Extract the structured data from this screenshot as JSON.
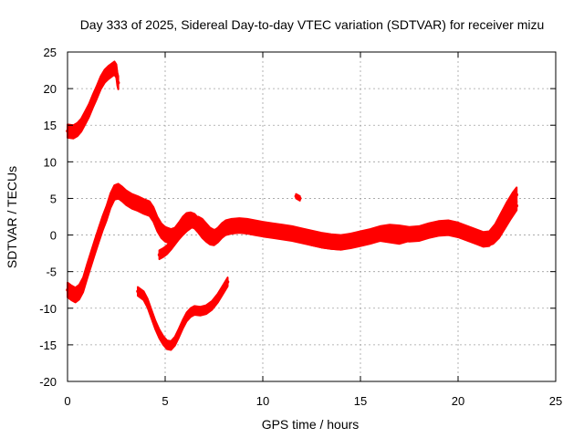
{
  "chart_data": {
    "type": "scatter",
    "title": "Day 333 of 2025, Sidereal Day-to-day VTEC variation (SDTVAR) for receiver mizu",
    "xlabel": "GPS time / hours",
    "ylabel": "SDTVAR / TECUs",
    "xlim": [
      0,
      25
    ],
    "ylim": [
      -20,
      25
    ],
    "xticks": [
      0,
      5,
      10,
      15,
      20,
      25
    ],
    "yticks": [
      -20,
      -15,
      -10,
      -5,
      0,
      5,
      10,
      15,
      20,
      25
    ],
    "xtick_labels": [
      "0",
      "5",
      "10",
      "15",
      "20",
      "25"
    ],
    "ytick_labels": [
      "-20",
      "-15",
      "-10",
      "-5",
      "0",
      "5",
      "10",
      "15",
      "20",
      "25"
    ],
    "grid": true,
    "legend": "none",
    "series_color": "#ff0000",
    "series": [
      {
        "name": "arc-1",
        "thickness": 0.9,
        "points": [
          [
            0.0,
            14.2
          ],
          [
            0.3,
            14.1
          ],
          [
            0.5,
            14.4
          ],
          [
            0.7,
            15.0
          ],
          [
            0.9,
            16.0
          ],
          [
            1.1,
            17.0
          ],
          [
            1.3,
            18.3
          ],
          [
            1.5,
            19.5
          ],
          [
            1.7,
            20.8
          ],
          [
            1.9,
            21.7
          ],
          [
            2.1,
            22.2
          ],
          [
            2.3,
            22.6
          ],
          [
            2.4,
            22.8
          ],
          [
            2.5,
            22.4
          ],
          [
            2.55,
            21.3
          ],
          [
            2.6,
            20.8
          ]
        ]
      },
      {
        "name": "arc-2",
        "thickness": 1.0,
        "points": [
          [
            0.0,
            -7.5
          ],
          [
            0.2,
            -7.9
          ],
          [
            0.4,
            -8.2
          ],
          [
            0.6,
            -7.8
          ],
          [
            0.8,
            -6.8
          ],
          [
            1.0,
            -5.0
          ],
          [
            1.2,
            -3.3
          ],
          [
            1.4,
            -1.6
          ],
          [
            1.6,
            0.0
          ],
          [
            1.8,
            1.6
          ],
          [
            2.0,
            3.0
          ],
          [
            2.2,
            4.7
          ],
          [
            2.4,
            5.8
          ],
          [
            2.6,
            6.0
          ],
          [
            2.8,
            5.6
          ],
          [
            3.0,
            5.1
          ],
          [
            3.3,
            4.6
          ],
          [
            3.6,
            4.3
          ],
          [
            3.9,
            3.9
          ],
          [
            4.2,
            3.6
          ],
          [
            4.4,
            2.8
          ],
          [
            4.6,
            1.5
          ],
          [
            4.8,
            0.6
          ],
          [
            5.0,
            0.1
          ],
          [
            5.3,
            -0.2
          ],
          [
            5.5,
            0.0
          ],
          [
            5.7,
            0.7
          ],
          [
            5.9,
            1.5
          ],
          [
            6.1,
            2.0
          ],
          [
            6.3,
            2.1
          ],
          [
            6.5,
            1.9
          ],
          [
            6.7,
            1.3
          ],
          [
            6.9,
            0.6
          ],
          [
            7.1,
            0.1
          ],
          [
            7.3,
            -0.3
          ],
          [
            7.5,
            -0.4
          ],
          [
            7.7,
            0.0
          ],
          [
            7.9,
            0.6
          ],
          [
            8.1,
            1.0
          ],
          [
            8.4,
            1.2
          ],
          [
            8.8,
            1.3
          ],
          [
            9.2,
            1.2
          ],
          [
            9.6,
            1.0
          ],
          [
            10.0,
            0.8
          ],
          [
            10.5,
            0.6
          ],
          [
            11.0,
            0.4
          ],
          [
            11.5,
            0.2
          ],
          [
            12.0,
            -0.1
          ],
          [
            12.5,
            -0.4
          ],
          [
            13.0,
            -0.7
          ],
          [
            13.5,
            -0.9
          ],
          [
            14.0,
            -1.0
          ],
          [
            14.5,
            -0.8
          ],
          [
            15.0,
            -0.5
          ],
          [
            15.5,
            -0.2
          ],
          [
            16.0,
            0.2
          ],
          [
            16.5,
            0.4
          ],
          [
            17.0,
            0.3
          ],
          [
            17.5,
            0.1
          ],
          [
            18.0,
            0.2
          ],
          [
            18.5,
            0.6
          ],
          [
            19.0,
            0.9
          ],
          [
            19.5,
            1.0
          ],
          [
            20.0,
            0.7
          ],
          [
            20.5,
            0.2
          ],
          [
            21.0,
            -0.3
          ],
          [
            21.3,
            -0.6
          ],
          [
            21.6,
            -0.5
          ],
          [
            21.9,
            0.5
          ],
          [
            22.2,
            2.0
          ],
          [
            22.5,
            3.5
          ],
          [
            22.8,
            4.8
          ],
          [
            23.0,
            5.5
          ]
        ]
      },
      {
        "name": "arc-3",
        "thickness": 0.6,
        "points": [
          [
            4.7,
            -2.7
          ],
          [
            4.9,
            -2.4
          ],
          [
            5.1,
            -2.0
          ],
          [
            5.3,
            -1.4
          ],
          [
            5.5,
            -0.7
          ],
          [
            5.7,
            0.0
          ],
          [
            5.9,
            0.6
          ],
          [
            6.1,
            1.1
          ],
          [
            6.3,
            1.5
          ],
          [
            6.5,
            1.8
          ],
          [
            6.7,
            1.9
          ],
          [
            6.9,
            1.6
          ],
          [
            7.1,
            1.0
          ],
          [
            7.3,
            0.4
          ],
          [
            7.5,
            0.1
          ],
          [
            7.8,
            0.3
          ],
          [
            8.1,
            0.8
          ],
          [
            8.4,
            1.3
          ],
          [
            8.8,
            1.5
          ],
          [
            9.2,
            1.3
          ],
          [
            9.6,
            1.1
          ],
          [
            10.0,
            0.9
          ],
          [
            10.5,
            0.6
          ],
          [
            11.0,
            0.3
          ],
          [
            11.5,
            0.0
          ],
          [
            12.0,
            -0.4
          ],
          [
            12.5,
            -0.8
          ],
          [
            13.0,
            -1.1
          ],
          [
            13.5,
            -1.3
          ],
          [
            14.0,
            -1.4
          ],
          [
            14.5,
            -1.1
          ],
          [
            15.0,
            -0.7
          ],
          [
            15.5,
            -0.4
          ],
          [
            16.0,
            -0.2
          ],
          [
            16.5,
            -0.4
          ],
          [
            17.0,
            -0.6
          ],
          [
            17.5,
            -0.2
          ],
          [
            18.0,
            0.4
          ],
          [
            18.5,
            0.9
          ],
          [
            19.0,
            1.2
          ],
          [
            19.5,
            1.2
          ],
          [
            20.0,
            0.9
          ],
          [
            20.5,
            0.4
          ],
          [
            21.0,
            -0.2
          ],
          [
            21.5,
            -0.9
          ],
          [
            21.8,
            -0.6
          ],
          [
            22.1,
            0.2
          ],
          [
            22.4,
            1.5
          ],
          [
            22.7,
            2.8
          ],
          [
            23.0,
            4.0
          ]
        ]
      },
      {
        "name": "arc-4",
        "thickness": 0.6,
        "points": [
          [
            3.6,
            -7.7
          ],
          [
            3.9,
            -8.3
          ],
          [
            4.1,
            -9.3
          ],
          [
            4.3,
            -10.8
          ],
          [
            4.5,
            -12.3
          ],
          [
            4.7,
            -13.5
          ],
          [
            4.9,
            -14.4
          ],
          [
            5.1,
            -15.0
          ],
          [
            5.3,
            -15.1
          ],
          [
            5.5,
            -14.5
          ],
          [
            5.7,
            -13.4
          ],
          [
            5.9,
            -12.2
          ],
          [
            6.1,
            -11.2
          ],
          [
            6.3,
            -10.6
          ],
          [
            6.5,
            -10.3
          ],
          [
            6.8,
            -10.4
          ],
          [
            7.1,
            -10.2
          ],
          [
            7.4,
            -9.6
          ],
          [
            7.7,
            -8.6
          ],
          [
            8.0,
            -7.3
          ],
          [
            8.2,
            -6.4
          ]
        ]
      },
      {
        "name": "arc-5",
        "thickness": 0.3,
        "points": [
          [
            11.7,
            5.3
          ],
          [
            11.9,
            5.0
          ]
        ]
      }
    ]
  }
}
